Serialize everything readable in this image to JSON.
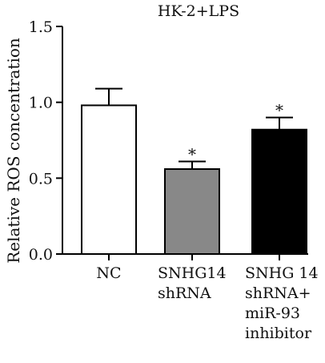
{
  "chart_data": {
    "type": "bar",
    "title": "HK-2+LPS",
    "ylabel": "Relative ROS concentration",
    "xlabel": "",
    "ylim": [
      0,
      1.5
    ],
    "yticks": [
      0.0,
      0.5,
      1.0,
      1.5
    ],
    "ytick_labels": [
      "0.0",
      "0.5",
      "1.0",
      "1.5"
    ],
    "grid": false,
    "categories": [
      {
        "lines": [
          "NC"
        ]
      },
      {
        "lines": [
          "SNHG14",
          "shRNA"
        ]
      },
      {
        "lines": [
          "SNHG 14",
          "shRNA+",
          "miR-93",
          "inhibitor"
        ]
      }
    ],
    "values": [
      0.98,
      0.56,
      0.82
    ],
    "errors": [
      0.11,
      0.05,
      0.08
    ],
    "significance": [
      "",
      "*",
      "*"
    ],
    "colors": [
      "#ffffff",
      "#888888",
      "#000000"
    ]
  }
}
